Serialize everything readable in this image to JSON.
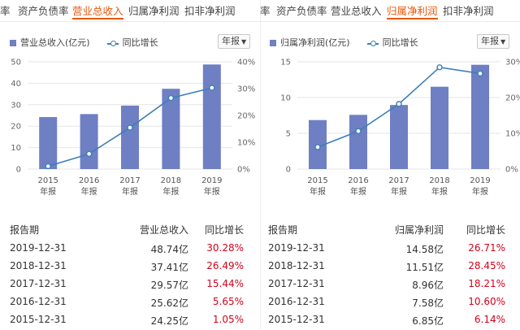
{
  "left": {
    "tabs": [
      {
        "label": "率"
      },
      {
        "label": "资产负债率"
      },
      {
        "label": "营业总收入",
        "active": true
      },
      {
        "label": "归属净利润"
      },
      {
        "label": "扣非净利润"
      }
    ],
    "legend": {
      "bar": "营业总收入(亿元)",
      "line": "同比增长"
    },
    "period": "年报",
    "table": {
      "headers": [
        "报告期",
        "营业总收入",
        "同比增长"
      ],
      "rows": [
        [
          "2019-12-31",
          "48.74亿",
          "30.28%"
        ],
        [
          "2018-12-31",
          "37.41亿",
          "26.49%"
        ],
        [
          "2017-12-31",
          "29.57亿",
          "15.44%"
        ],
        [
          "2016-12-31",
          "25.62亿",
          "5.65%"
        ],
        [
          "2015-12-31",
          "24.25亿",
          "1.05%"
        ]
      ]
    }
  },
  "right": {
    "tabs": [
      {
        "label": "率"
      },
      {
        "label": "资产负债率"
      },
      {
        "label": "营业总收入"
      },
      {
        "label": "归属净利润",
        "active": true
      },
      {
        "label": "扣非净利润"
      }
    ],
    "legend": {
      "bar": "归属净利润(亿元)",
      "line": "同比增长"
    },
    "period": "年报",
    "table": {
      "headers": [
        "报告期",
        "归属净利润",
        "同比增长"
      ],
      "rows": [
        [
          "2019-12-31",
          "14.58亿",
          "26.71%"
        ],
        [
          "2018-12-31",
          "11.51亿",
          "28.45%"
        ],
        [
          "2017-12-31",
          "8.96亿",
          "18.21%"
        ],
        [
          "2016-12-31",
          "7.58亿",
          "10.60%"
        ],
        [
          "2015-12-31",
          "6.85亿",
          "6.14%"
        ]
      ]
    }
  },
  "colors": {
    "accent": "#e8590c",
    "bar": "#6f7fc4",
    "line": "#3d7fb8",
    "positive": "#d0021b"
  },
  "chart_data": [
    {
      "type": "bar",
      "title": "",
      "categories": [
        "2015",
        "2016",
        "2017",
        "2018",
        "2019"
      ],
      "category_sublabel": "年报",
      "series": [
        {
          "name": "营业总收入(亿元)",
          "type": "bar",
          "axis": "left",
          "values": [
            24.25,
            25.62,
            29.57,
            37.41,
            48.74
          ]
        },
        {
          "name": "同比增长",
          "type": "line",
          "axis": "right",
          "values": [
            1.05,
            5.65,
            15.44,
            26.49,
            30.28
          ]
        }
      ],
      "ylim": [
        0,
        50
      ],
      "yticks": [
        "0",
        "10",
        "20",
        "30",
        "40",
        "50"
      ],
      "y2lim": [
        0,
        40
      ],
      "y2ticks": [
        "0%",
        "10%",
        "20%",
        "30%",
        "40%"
      ],
      "grid": true,
      "legend": "top-left"
    },
    {
      "type": "bar",
      "title": "",
      "categories": [
        "2015",
        "2016",
        "2017",
        "2018",
        "2019"
      ],
      "category_sublabel": "年报",
      "series": [
        {
          "name": "归属净利润(亿元)",
          "type": "bar",
          "axis": "left",
          "values": [
            6.85,
            7.58,
            8.96,
            11.51,
            14.58
          ]
        },
        {
          "name": "同比增长",
          "type": "line",
          "axis": "right",
          "values": [
            6.14,
            10.6,
            18.21,
            28.45,
            26.71
          ]
        }
      ],
      "ylim": [
        0,
        15
      ],
      "yticks": [
        "0",
        "5",
        "10",
        "15"
      ],
      "y2lim": [
        0,
        30
      ],
      "y2ticks": [
        "0%",
        "10%",
        "20%",
        "30%"
      ],
      "grid": true,
      "legend": "top-left"
    }
  ]
}
